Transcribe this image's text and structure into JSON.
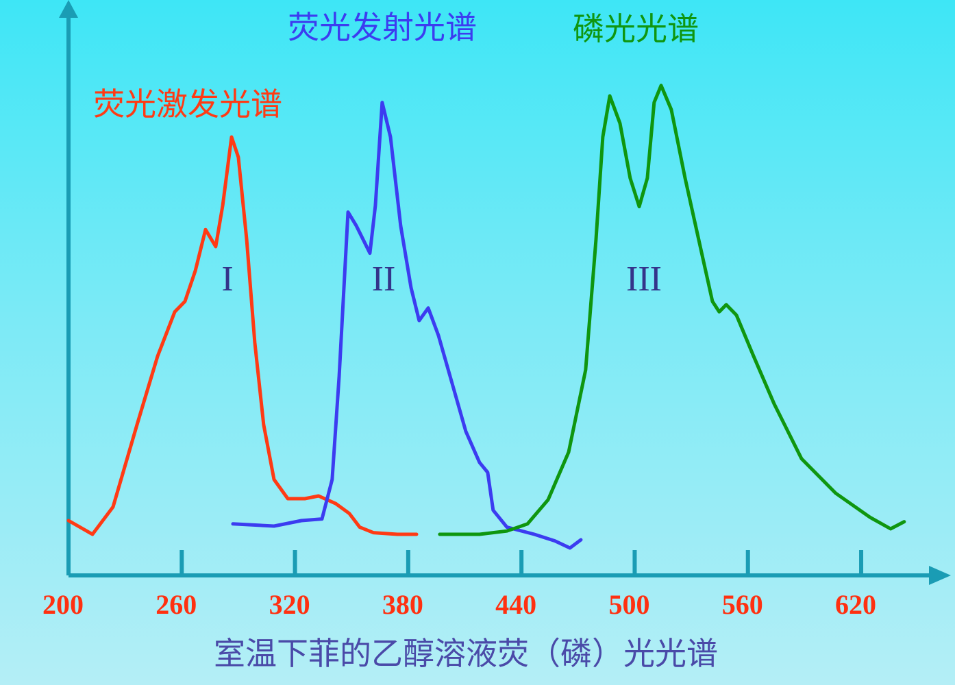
{
  "chart_data": {
    "type": "line",
    "x_label": "室温下菲的乙醇溶液荧（磷）光光谱",
    "xlim": [
      200,
      665
    ],
    "xticks": [
      200,
      260,
      320,
      380,
      440,
      500,
      560,
      620
    ],
    "ylim": [
      0,
      100
    ],
    "series": [
      {
        "name": "荧光激发光谱",
        "marker": "I",
        "color": "#ff3a14",
        "x": [
          200,
          212.7,
          223.6,
          236.3,
          247.2,
          256.3,
          261.7,
          267.2,
          272.6,
          278,
          281.7,
          286.4,
          290,
          294.4,
          298.7,
          303.4,
          308.9,
          316.2,
          325.2,
          332.5,
          341.6,
          348.8,
          354.3,
          361.5,
          374.2,
          384.4
        ],
        "values": [
          10,
          7.5,
          12.5,
          27.5,
          40,
          48.1,
          50,
          55.6,
          63.1,
          60,
          67.5,
          80,
          76.3,
          61.3,
          42.5,
          27.5,
          17.5,
          14,
          14,
          14.5,
          13.1,
          11.3,
          8.8,
          7.8,
          7.5,
          7.5
        ]
      },
      {
        "name": "荧光发射光谱",
        "marker": "II",
        "color": "#3c3cf0",
        "x": [
          287.1,
          308.9,
          323.4,
          334.3,
          339.7,
          343.4,
          348.1,
          352.5,
          356.1,
          359.7,
          362.6,
          366.2,
          370.6,
          376,
          381.5,
          385.8,
          390.6,
          396,
          403.3,
          410.5,
          417.8,
          422.1,
          425,
          432.3,
          446.8,
          457.7,
          465.7,
          471.5
        ],
        "values": [
          9.4,
          9,
          10,
          10.3,
          17.5,
          36.3,
          66.3,
          63.8,
          61.3,
          58.8,
          67.5,
          86.3,
          80,
          63.8,
          52.5,
          46.5,
          48.8,
          43.8,
          35,
          26.3,
          20.6,
          18.8,
          11.9,
          8.8,
          7.5,
          6.3,
          5,
          6.5
        ]
      },
      {
        "name": "磷光光谱",
        "marker": "III",
        "color": "#0f960f",
        "x": [
          396.7,
          417.8,
          432.3,
          443.2,
          454.1,
          465,
          474,
          479.5,
          483.1,
          486.8,
          492.2,
          497.6,
          502.4,
          506.7,
          510.3,
          514,
          519.4,
          526.7,
          533.9,
          541.2,
          544.8,
          548.5,
          553.9,
          563,
          573.9,
          588.4,
          606.5,
          624.7,
          635.6,
          642.8
        ],
        "values": [
          7.5,
          7.5,
          8.1,
          9.4,
          13.8,
          22.5,
          37.5,
          61.3,
          80,
          87.5,
          82.5,
          72.5,
          67.3,
          72.5,
          86.3,
          89.4,
          85,
          72.5,
          61.3,
          50,
          48.1,
          49.4,
          47.5,
          40,
          31.3,
          21.3,
          15,
          10.6,
          8.5,
          9.8
        ]
      }
    ]
  }
}
